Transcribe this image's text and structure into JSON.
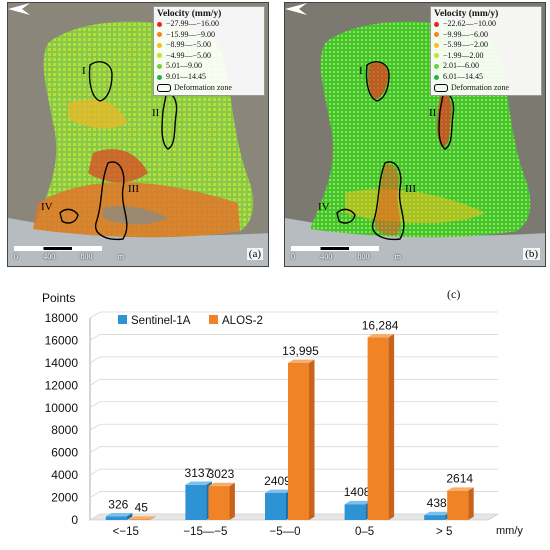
{
  "panel_a": {
    "legend_title": "Velocity (mm/y)",
    "classes": [
      {
        "label": "−27.99—−16.00",
        "color": "#e8271f"
      },
      {
        "label": "−15.99—−9.00",
        "color": "#f2851d"
      },
      {
        "label": "−8.99—−5.00",
        "color": "#f8c01a"
      },
      {
        "label": "−4.99—−5.00",
        "color": "#c9e224"
      },
      {
        "label": "5.01—9.00",
        "color": "#6fd334"
      },
      {
        "label": "9.01—14.45",
        "color": "#26b44a"
      }
    ],
    "zone_label": "Deformation zone",
    "tag": "(a)",
    "scale_labels": [
      "0",
      "400",
      "800",
      "m"
    ],
    "zones": [
      "I",
      "II",
      "III",
      "IV"
    ]
  },
  "panel_b": {
    "legend_title": "Velocity (mm/y)",
    "classes": [
      {
        "label": "−22.62—−10.00",
        "color": "#e8271f"
      },
      {
        "label": "−9.99—−6.00",
        "color": "#f2851d"
      },
      {
        "label": "−5.99—−2.00",
        "color": "#f8c01a"
      },
      {
        "label": "−1.99—2.00",
        "color": "#c9e224"
      },
      {
        "label": "2.01—6.00",
        "color": "#6fd334"
      },
      {
        "label": "6.01—14.45",
        "color": "#26b44a"
      }
    ],
    "zone_label": "Deformation zone",
    "tag": "(b)",
    "scale_labels": [
      "0",
      "400",
      "800",
      "m"
    ],
    "zones": [
      "I",
      "II",
      "III",
      "IV"
    ]
  },
  "chart_data": {
    "type": "bar",
    "tag": "(c)",
    "ylabel": "Points",
    "xunit": "mm/y",
    "categories": [
      "<−15",
      "−15—−5",
      "−5—0",
      "0–5",
      "> 5"
    ],
    "series": [
      {
        "name": "Sentinel-1A",
        "color": "#2e93d4",
        "values": [
          326,
          3137,
          2409,
          1408,
          438
        ],
        "labels": [
          "326",
          "3137",
          "2409",
          "1408",
          "438"
        ]
      },
      {
        "name": "ALOS-2",
        "color": "#f08326",
        "values": [
          45,
          3023,
          13995,
          16284,
          2614
        ],
        "labels": [
          "45",
          "3023",
          "13,995",
          "16,284",
          "2614"
        ]
      }
    ],
    "ylim": [
      0,
      18000
    ],
    "yticks": [
      0,
      2000,
      4000,
      6000,
      8000,
      10000,
      12000,
      14000,
      16000,
      18000
    ],
    "grid": true,
    "legend_position": "top-left"
  }
}
